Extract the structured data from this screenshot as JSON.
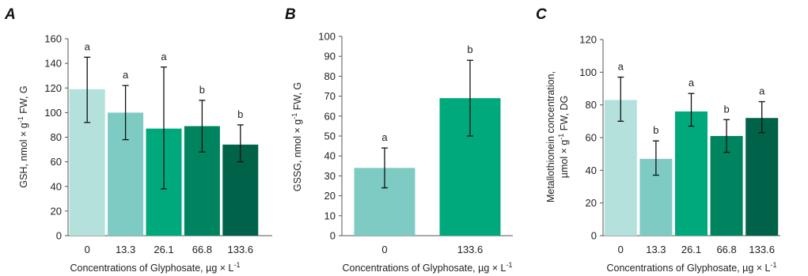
{
  "chart_data": [
    {
      "type": "bar",
      "panel": "A",
      "categories": [
        "0",
        "13.3",
        "26.1",
        "66.8",
        "133.6"
      ],
      "values": [
        119,
        100,
        87,
        89,
        74
      ],
      "error_low": [
        92,
        78,
        38,
        68,
        60
      ],
      "error_high": [
        145,
        122,
        137,
        110,
        90
      ],
      "significance": [
        "a",
        "a",
        "a",
        "b",
        "b"
      ],
      "colors": [
        "#b4e1dc",
        "#7dcbc3",
        "#00a97c",
        "#00845f",
        "#006248"
      ],
      "ylim": [
        0,
        160
      ],
      "yticks": [
        0,
        20,
        40,
        60,
        80,
        100,
        120,
        140,
        160
      ],
      "ylabel_main": "GSH, nmol ×",
      "ylabel_sup_base": "g",
      "ylabel_sup": "-1",
      "ylabel_tail": "FW, G",
      "xlabel": "Concentrations of Glyphosate, µg × L",
      "xlabel_sup": "-1"
    },
    {
      "type": "bar",
      "panel": "B",
      "categories": [
        "0",
        "133.6"
      ],
      "values": [
        34,
        69
      ],
      "error_low": [
        24,
        50
      ],
      "error_high": [
        44,
        88
      ],
      "significance": [
        "a",
        "b"
      ],
      "colors": [
        "#7dcbc3",
        "#00a97c"
      ],
      "ylim": [
        0,
        100
      ],
      "yticks": [
        0,
        10,
        20,
        30,
        40,
        50,
        60,
        70,
        80,
        90,
        100
      ],
      "ylabel_main": "GSSG, nmol ×",
      "ylabel_sup_base": "g",
      "ylabel_sup": "-1",
      "ylabel_tail": "FW, G",
      "xlabel": "Concentrations of Glyphosate, µg × L",
      "xlabel_sup": "-1"
    },
    {
      "type": "bar",
      "panel": "C",
      "categories": [
        "0",
        "13.3",
        "26.1",
        "66.8",
        "133.6"
      ],
      "values": [
        83,
        47,
        76,
        61,
        72
      ],
      "error_low": [
        70,
        37,
        67,
        51,
        63
      ],
      "error_high": [
        97,
        58,
        87,
        71,
        82
      ],
      "significance": [
        "a",
        "b",
        "a",
        "b",
        "a"
      ],
      "colors": [
        "#b4e1dc",
        "#7dcbc3",
        "#00a97c",
        "#00845f",
        "#006248"
      ],
      "ylim": [
        0,
        120
      ],
      "yticks": [
        0,
        20,
        40,
        60,
        80,
        100,
        120
      ],
      "ylabel_line1": "Metallothionein concentration,",
      "ylabel_main": "µmol ×",
      "ylabel_sup_base": "g",
      "ylabel_sup": "-1",
      "ylabel_tail": "FW, DG",
      "xlabel": "Concentrations of Glyphosate, µg × L",
      "xlabel_sup": "-1"
    }
  ]
}
